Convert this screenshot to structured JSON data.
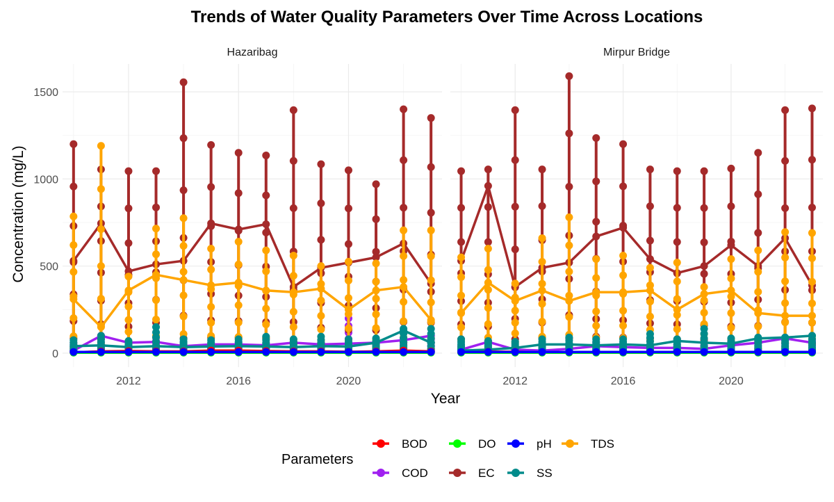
{
  "chart_data": {
    "type": "line",
    "title": "Trends of Water Quality Parameters Over Time Across Locations",
    "xlabel": "Year",
    "ylabel": "Concentration (mg/L)",
    "xlim": [
      2009.6,
      2023.4
    ],
    "ylim": [
      -80,
      1660
    ],
    "x_ticks": [
      2012,
      2016,
      2020
    ],
    "y_ticks": [
      0,
      500,
      1000,
      1500
    ],
    "grid": true,
    "legend": {
      "title": "Parameters",
      "position": "bottom",
      "entries": [
        "BOD",
        "DO",
        "pH",
        "TDS",
        "COD",
        "EC",
        "SS"
      ]
    },
    "colors": {
      "BOD": "#ff0000",
      "COD": "#a020f0",
      "DO": "#00ff00",
      "EC": "#a52a2a",
      "pH": "#0000ff",
      "SS": "#008b8b",
      "TDS": "#ffa500"
    },
    "years": [
      2010,
      2011,
      2012,
      2013,
      2014,
      2015,
      2016,
      2017,
      2018,
      2019,
      2020,
      2021,
      2022,
      2023
    ],
    "panels": [
      {
        "name": "Hazaribag",
        "line_series": {
          "EC": [
            530,
            745,
            470,
            510,
            530,
            745,
            710,
            740,
            380,
            490,
            520,
            550,
            630,
            400
          ],
          "TDS": [
            310,
            150,
            360,
            450,
            420,
            390,
            405,
            360,
            350,
            370,
            250,
            360,
            380,
            190
          ],
          "COD": [
            15,
            100,
            60,
            65,
            40,
            50,
            50,
            45,
            60,
            50,
            55,
            60,
            75,
            100
          ],
          "SS": [
            40,
            45,
            35,
            40,
            35,
            38,
            40,
            38,
            35,
            40,
            38,
            60,
            130,
            60
          ],
          "BOD": [
            5,
            10,
            12,
            10,
            10,
            15,
            15,
            12,
            10,
            10,
            8,
            10,
            15,
            10
          ],
          "DO": [
            3,
            3,
            3,
            3,
            3,
            3,
            3,
            3,
            3,
            3,
            3,
            3,
            3,
            3
          ],
          "pH": [
            7,
            7,
            7,
            7,
            7,
            7,
            7,
            7,
            7,
            7,
            7,
            7,
            7,
            7
          ]
        },
        "ranges": {
          "EC": [
            [
              85,
              1200
            ],
            [
              80,
              1055
            ],
            [
              65,
              1045
            ],
            [
              90,
              1045
            ],
            [
              85,
              1555
            ],
            [
              90,
              1195
            ],
            [
              90,
              1150
            ],
            [
              85,
              1135
            ],
            [
              60,
              1395
            ],
            [
              55,
              1085
            ],
            [
              45,
              1050
            ],
            [
              50,
              970
            ],
            [
              60,
              1400
            ],
            [
              60,
              1350
            ]
          ],
          "TDS": [
            [
              30,
              785
            ],
            [
              55,
              1190
            ],
            [
              30,
              440
            ],
            [
              40,
              715
            ],
            [
              45,
              775
            ],
            [
              50,
              600
            ],
            [
              40,
              640
            ],
            [
              40,
              590
            ],
            [
              30,
              560
            ],
            [
              30,
              500
            ],
            [
              30,
              525
            ],
            [
              35,
              515
            ],
            [
              30,
              705
            ],
            [
              25,
              705
            ]
          ],
          "SS": [
            [
              10,
              75
            ],
            [
              15,
              100
            ],
            [
              15,
              70
            ],
            [
              10,
              150
            ],
            [
              15,
              80
            ],
            [
              10,
              75
            ],
            [
              10,
              80
            ],
            [
              10,
              95
            ],
            [
              10,
              80
            ],
            [
              10,
              95
            ],
            [
              10,
              80
            ],
            [
              10,
              85
            ],
            [
              15,
              140
            ],
            [
              10,
              140
            ]
          ],
          "COD": [
            [
              5,
              60
            ],
            [
              5,
              100
            ],
            [
              5,
              60
            ],
            [
              5,
              70
            ],
            [
              5,
              60
            ],
            [
              5,
              55
            ],
            [
              5,
              60
            ],
            [
              5,
              55
            ],
            [
              5,
              65
            ],
            [
              5,
              60
            ],
            [
              5,
              200
            ],
            [
              5,
              60
            ],
            [
              5,
              80
            ],
            [
              5,
              100
            ]
          ]
        }
      },
      {
        "name": "Mirpur Bridge",
        "line_series": {
          "EC": [
            530,
            960,
            380,
            490,
            520,
            670,
            720,
            540,
            460,
            500,
            620,
            500,
            660,
            390
          ],
          "TDS": [
            230,
            405,
            300,
            360,
            300,
            350,
            350,
            360,
            250,
            340,
            360,
            230,
            215,
            215
          ],
          "COD": [
            20,
            65,
            20,
            15,
            25,
            40,
            35,
            30,
            30,
            25,
            45,
            60,
            85,
            60
          ],
          "SS": [
            15,
            20,
            30,
            50,
            50,
            45,
            50,
            45,
            70,
            60,
            55,
            85,
            90,
            100
          ],
          "BOD": [
            5,
            8,
            8,
            5,
            5,
            5,
            5,
            5,
            5,
            5,
            5,
            5,
            5,
            5
          ],
          "DO": [
            3,
            3,
            3,
            3,
            3,
            3,
            3,
            3,
            3,
            3,
            3,
            3,
            3,
            3
          ],
          "pH": [
            7,
            7,
            7,
            7,
            7,
            7,
            7,
            7,
            7,
            7,
            7,
            7,
            7,
            7
          ]
        },
        "ranges": {
          "EC": [
            [
              80,
              1045
            ],
            [
              65,
              1055
            ],
            [
              80,
              1395
            ],
            [
              90,
              1055
            ],
            [
              85,
              1590
            ],
            [
              95,
              1235
            ],
            [
              90,
              1200
            ],
            [
              85,
              1055
            ],
            [
              80,
              1045
            ],
            [
              75,
              1045
            ],
            [
              65,
              1060
            ],
            [
              60,
              1150
            ],
            [
              60,
              1395
            ],
            [
              55,
              1405
            ]
          ],
          "TDS": [
            [
              30,
              550
            ],
            [
              40,
              600
            ],
            [
              30,
              400
            ],
            [
              40,
              660
            ],
            [
              40,
              780
            ],
            [
              45,
              540
            ],
            [
              40,
              560
            ],
            [
              30,
              490
            ],
            [
              25,
              520
            ],
            [
              30,
              380
            ],
            [
              30,
              540
            ],
            [
              25,
              590
            ],
            [
              25,
              695
            ],
            [
              25,
              690
            ]
          ],
          "SS": [
            [
              10,
              80
            ],
            [
              10,
              70
            ],
            [
              10,
              65
            ],
            [
              10,
              80
            ],
            [
              10,
              90
            ],
            [
              10,
              80
            ],
            [
              10,
              80
            ],
            [
              10,
              110
            ],
            [
              10,
              80
            ],
            [
              10,
              140
            ],
            [
              10,
              85
            ],
            [
              10,
              90
            ],
            [
              10,
              90
            ],
            [
              10,
              100
            ]
          ],
          "COD": [
            [
              5,
              40
            ],
            [
              5,
              70
            ],
            [
              5,
              30
            ],
            [
              5,
              50
            ],
            [
              5,
              40
            ],
            [
              5,
              60
            ],
            [
              5,
              50
            ],
            [
              5,
              40
            ],
            [
              5,
              50
            ],
            [
              5,
              45
            ],
            [
              5,
              60
            ],
            [
              5,
              70
            ],
            [
              5,
              90
            ],
            [
              5,
              70
            ]
          ]
        }
      }
    ]
  }
}
